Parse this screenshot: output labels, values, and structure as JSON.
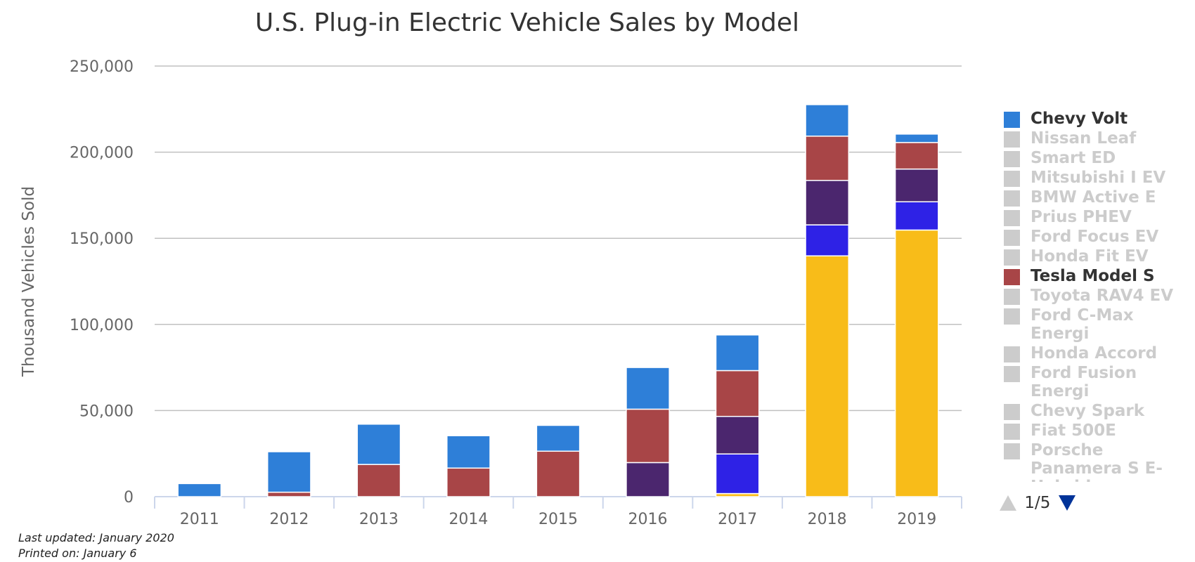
{
  "chart_data": {
    "type": "bar",
    "stacked": true,
    "title": "U.S. Plug-in Electric Vehicle Sales by Model",
    "ylabel": "Thousand Vehicles Sold",
    "xlabel": "",
    "categories": [
      "2011",
      "2012",
      "2013",
      "2014",
      "2015",
      "2016",
      "2017",
      "2018",
      "2019"
    ],
    "ylim": [
      0,
      250000
    ],
    "yticks": [
      0,
      50000,
      100000,
      150000,
      200000,
      250000
    ],
    "ytick_labels": [
      "0",
      "50,000",
      "100,000",
      "150,000",
      "200,000",
      "250,000"
    ],
    "grid": true,
    "series": [
      {
        "color": "#f8bc19",
        "values": [
          0,
          0,
          0,
          0,
          0,
          0,
          1800,
          139800,
          154800
        ]
      },
      {
        "color": "#2e22e6",
        "values": [
          0,
          0,
          0,
          0,
          0,
          0,
          23000,
          18000,
          16400
        ]
      },
      {
        "color": "#4b266e",
        "values": [
          0,
          0,
          0,
          0,
          0,
          19800,
          21800,
          25800,
          19000
        ]
      },
      {
        "name": "Tesla Model S",
        "color": "#a84547",
        "values": [
          0,
          2600,
          18700,
          16600,
          26400,
          31000,
          26600,
          25700,
          15400
        ]
      },
      {
        "name": "Chevy Volt",
        "color": "#2e7fd8",
        "values": [
          7600,
          23500,
          23400,
          18800,
          15000,
          24200,
          20700,
          18300,
          4900
        ]
      }
    ]
  },
  "legend": {
    "items": [
      {
        "label": "Chevy Volt",
        "active": true,
        "color": "#2e7fd8"
      },
      {
        "label": "Nissan Leaf",
        "active": false
      },
      {
        "label": "Smart ED",
        "active": false
      },
      {
        "label": "Mitsubishi I EV",
        "active": false
      },
      {
        "label": "BMW Active E",
        "active": false
      },
      {
        "label": "Prius PHEV",
        "active": false
      },
      {
        "label": "Ford Focus EV",
        "active": false
      },
      {
        "label": "Honda Fit EV",
        "active": false
      },
      {
        "label": "Tesla Model S",
        "active": true,
        "color": "#a84547"
      },
      {
        "label": "Toyota RAV4 EV",
        "active": false
      },
      {
        "label": "Ford C-Max Energi",
        "active": false
      },
      {
        "label": "Honda Accord",
        "active": false
      },
      {
        "label": "Ford Fusion Energi",
        "active": false
      },
      {
        "label": "Chevy Spark",
        "active": false
      },
      {
        "label": "Fiat 500E",
        "active": false
      },
      {
        "label": "Porsche Panamera S E-Hybrid",
        "active": false
      }
    ],
    "page_indicator": "1/5",
    "inactive_color": "#cccccc"
  },
  "footer": {
    "last_updated": "Last updated: January 2020",
    "printed_on": "Printed on: January 6"
  }
}
